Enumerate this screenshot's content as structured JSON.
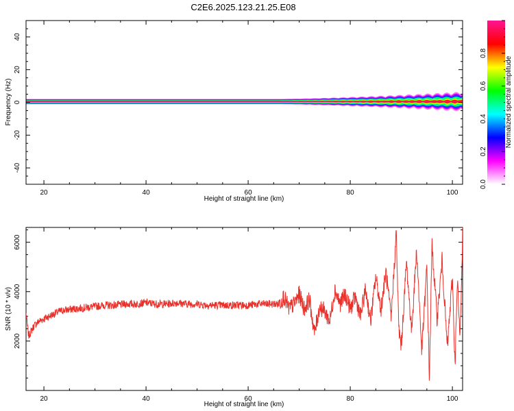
{
  "title": "C2E6.2025.123.21.25.E08",
  "chart_data": [
    {
      "type": "heatmap",
      "xlabel": "Height of straight line (km)",
      "ylabel": "Frequency (Hz)",
      "xlim": [
        16.5,
        102
      ],
      "ylim": [
        -50,
        50
      ],
      "xticks": [
        "20",
        "40",
        "60",
        "80",
        "100"
      ],
      "yticks": [
        "-40",
        "-20",
        "0",
        "20",
        "40"
      ],
      "signal": {
        "frequency_hz": 0.5,
        "core_halfwidth_hz": 1.0,
        "spread_start_km": 66,
        "spread_max_halfwidth_hz": 4.5
      },
      "colorbar": {
        "label": "Normalized spectral amplitude",
        "range": [
          0.0,
          1.0
        ],
        "ticks": [
          "0.0",
          "0.2",
          "0.4",
          "0.6",
          "0.8"
        ],
        "colormap": [
          "#ffffff",
          "#ff00ff",
          "#0000ff",
          "#00ffff",
          "#00ff00",
          "#ffff00",
          "#ff0000",
          "#ff1493"
        ]
      }
    },
    {
      "type": "line",
      "xlabel": "Height of straight line (km)",
      "ylabel": "SNR (10 * v/v)",
      "xlim": [
        16.5,
        102
      ],
      "ylim": [
        0,
        6600
      ],
      "xticks": [
        "20",
        "40",
        "60",
        "80",
        "100"
      ],
      "yticks": [
        "2000",
        "4000",
        "6000"
      ],
      "line_color": "#e8312b",
      "series": [
        {
          "x": [
            16.5,
            17,
            17.5,
            18,
            19,
            20,
            21,
            22,
            23,
            24,
            26,
            28,
            30,
            32,
            34,
            36,
            38,
            40,
            42,
            44,
            46,
            48,
            50,
            52,
            54,
            56,
            58,
            60,
            62,
            64,
            66,
            67,
            68,
            69,
            70,
            71,
            72,
            73,
            74,
            75,
            76,
            77,
            78,
            79,
            80,
            81,
            82,
            83,
            84,
            85,
            86,
            87,
            88,
            89,
            89.5,
            90,
            91,
            92,
            93,
            94,
            95,
            95.5,
            96,
            97,
            98,
            99,
            100,
            100.5,
            101,
            101.5,
            102
          ],
          "y": [
            3100,
            2200,
            2400,
            2600,
            2800,
            2900,
            3000,
            3100,
            3200,
            3250,
            3300,
            3350,
            3400,
            3450,
            3450,
            3500,
            3500,
            3550,
            3500,
            3500,
            3550,
            3500,
            3500,
            3450,
            3450,
            3450,
            3450,
            3450,
            3500,
            3500,
            3500,
            3800,
            3300,
            3500,
            3900,
            3300,
            3700,
            2300,
            3400,
            3200,
            2800,
            4100,
            3500,
            3900,
            3300,
            3800,
            3000,
            4100,
            2800,
            4600,
            3300,
            4800,
            2900,
            6400,
            2500,
            1800,
            5200,
            2400,
            5700,
            1600,
            5000,
            400,
            5900,
            2900,
            5300,
            1700,
            4600,
            1000,
            4400,
            2100,
            6400
          ],
          "noise_amplitude": 160
        }
      ]
    }
  ]
}
